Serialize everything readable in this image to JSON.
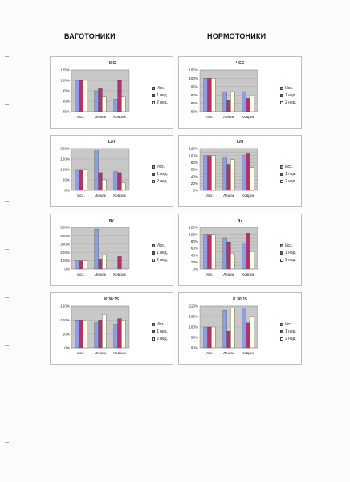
{
  "page": {
    "left_title": "ВАГОТОНИКИ",
    "right_title": "НОРМОТОНИКИ"
  },
  "legend": [
    "Исх.",
    "1 нед.",
    "2 нед."
  ],
  "colors": {
    "series": [
      "#8c9fe0",
      "#b0336b",
      "#ffffe6"
    ],
    "plot_bg": "#c8c8c8"
  },
  "chart_data": [
    {
      "type": "bar",
      "title": "ЧСС",
      "group": "ВАГОТОНИКИ",
      "categories": [
        "Исх.",
        "Лежак",
        "Коврик"
      ],
      "ylim": [
        85,
        105
      ],
      "yticks": [
        85,
        90,
        95,
        100,
        105
      ],
      "tick_suffix": "%",
      "series": [
        {
          "name": "Исх.",
          "values": [
            100,
            95,
            91
          ]
        },
        {
          "name": "1 нед.",
          "values": [
            100,
            96,
            100
          ]
        },
        {
          "name": "2 нед.",
          "values": [
            100,
            92,
            92
          ]
        }
      ]
    },
    {
      "type": "bar",
      "title": "ЧСС",
      "group": "НОРМОТОНИКИ",
      "categories": [
        "Исх.",
        "Лежак",
        "Коврик"
      ],
      "ylim": [
        80,
        105
      ],
      "yticks": [
        80,
        85,
        90,
        95,
        100,
        105
      ],
      "tick_suffix": "%",
      "series": [
        {
          "name": "Исх.",
          "values": [
            100,
            92,
            92
          ]
        },
        {
          "name": "1 нед.",
          "values": [
            100,
            87,
            88
          ]
        },
        {
          "name": "2 нед.",
          "values": [
            100,
            92,
            90
          ]
        }
      ]
    },
    {
      "type": "bar",
      "title": "L/H",
      "group": "ВАГОТОНИКИ",
      "categories": [
        "Исх.",
        "Лежак",
        "Коврик"
      ],
      "ylim": [
        0,
        200
      ],
      "yticks": [
        0,
        50,
        100,
        150,
        200
      ],
      "tick_suffix": "%",
      "series": [
        {
          "name": "Исх.",
          "values": [
            100,
            190,
            90
          ]
        },
        {
          "name": "1 нед.",
          "values": [
            100,
            85,
            85
          ]
        },
        {
          "name": "2 нед.",
          "values": [
            100,
            50,
            35
          ]
        }
      ]
    },
    {
      "type": "bar",
      "title": "L/H",
      "group": "НОРМОТОНИКИ",
      "categories": [
        "Исх.",
        "Лежак",
        "Коврик"
      ],
      "ylim": [
        0,
        120
      ],
      "yticks": [
        0,
        10,
        20,
        30,
        40,
        50,
        60,
        70,
        80,
        90,
        100,
        110,
        120
      ],
      "tick_suffix": "%",
      "series": [
        {
          "name": "Исх.",
          "values": [
            100,
            95,
            100
          ]
        },
        {
          "name": "1 нед.",
          "values": [
            100,
            75,
            105
          ]
        },
        {
          "name": "2 нед.",
          "values": [
            100,
            88,
            65
          ]
        }
      ]
    },
    {
      "type": "bar",
      "title": "N7",
      "group": "ВАГОТОНИКИ",
      "categories": [
        "Исх.",
        "Лежак",
        "Коврик"
      ],
      "ylim": [
        0,
        500
      ],
      "yticks": [
        0,
        100,
        200,
        300,
        400,
        500
      ],
      "tick_suffix": "%",
      "series": [
        {
          "name": "Исх.",
          "values": [
            100,
            480,
            0
          ]
        },
        {
          "name": "1 нед.",
          "values": [
            100,
            120,
            150
          ]
        },
        {
          "name": "2 нед.",
          "values": [
            100,
            180,
            0
          ]
        }
      ]
    },
    {
      "type": "bar",
      "title": "N7",
      "group": "НОРМОТОНИКИ",
      "categories": [
        "Исх.",
        "Лежак",
        "Коврик"
      ],
      "ylim": [
        0,
        120
      ],
      "yticks": [
        0,
        10,
        20,
        30,
        40,
        50,
        60,
        70,
        80,
        90,
        100,
        110,
        120
      ],
      "tick_suffix": "%",
      "series": [
        {
          "name": "Исх.",
          "values": [
            100,
            90,
            75
          ]
        },
        {
          "name": "1 нед.",
          "values": [
            100,
            78,
            103
          ]
        },
        {
          "name": "2 нед.",
          "values": [
            100,
            45,
            50
          ]
        }
      ]
    },
    {
      "type": "bar",
      "title": "K 30:15",
      "group": "ВАГОТОНИКИ",
      "categories": [
        "Исх.",
        "Лежак",
        "Коврик"
      ],
      "ylim": [
        0,
        150
      ],
      "yticks": [
        0,
        50,
        100,
        150
      ],
      "tick_suffix": "%",
      "series": [
        {
          "name": "Исх.",
          "values": [
            100,
            90,
            85
          ]
        },
        {
          "name": "1 нед.",
          "values": [
            100,
            100,
            105
          ]
        },
        {
          "name": "2 нед.",
          "values": [
            100,
            120,
            100
          ]
        }
      ]
    },
    {
      "type": "bar",
      "title": "K 30:15",
      "group": "НОРМОТОНИКИ",
      "categories": [
        "Исх.",
        "Лежак",
        "Коврик"
      ],
      "ylim": [
        90,
        110
      ],
      "yticks": [
        90,
        95,
        100,
        105,
        110
      ],
      "tick_suffix": "%",
      "series": [
        {
          "name": "Исх.",
          "values": [
            100,
            108,
            109
          ]
        },
        {
          "name": "1 нед.",
          "values": [
            100,
            98,
            102
          ]
        },
        {
          "name": "2 нед.",
          "values": [
            100,
            109,
            105
          ]
        }
      ]
    }
  ]
}
